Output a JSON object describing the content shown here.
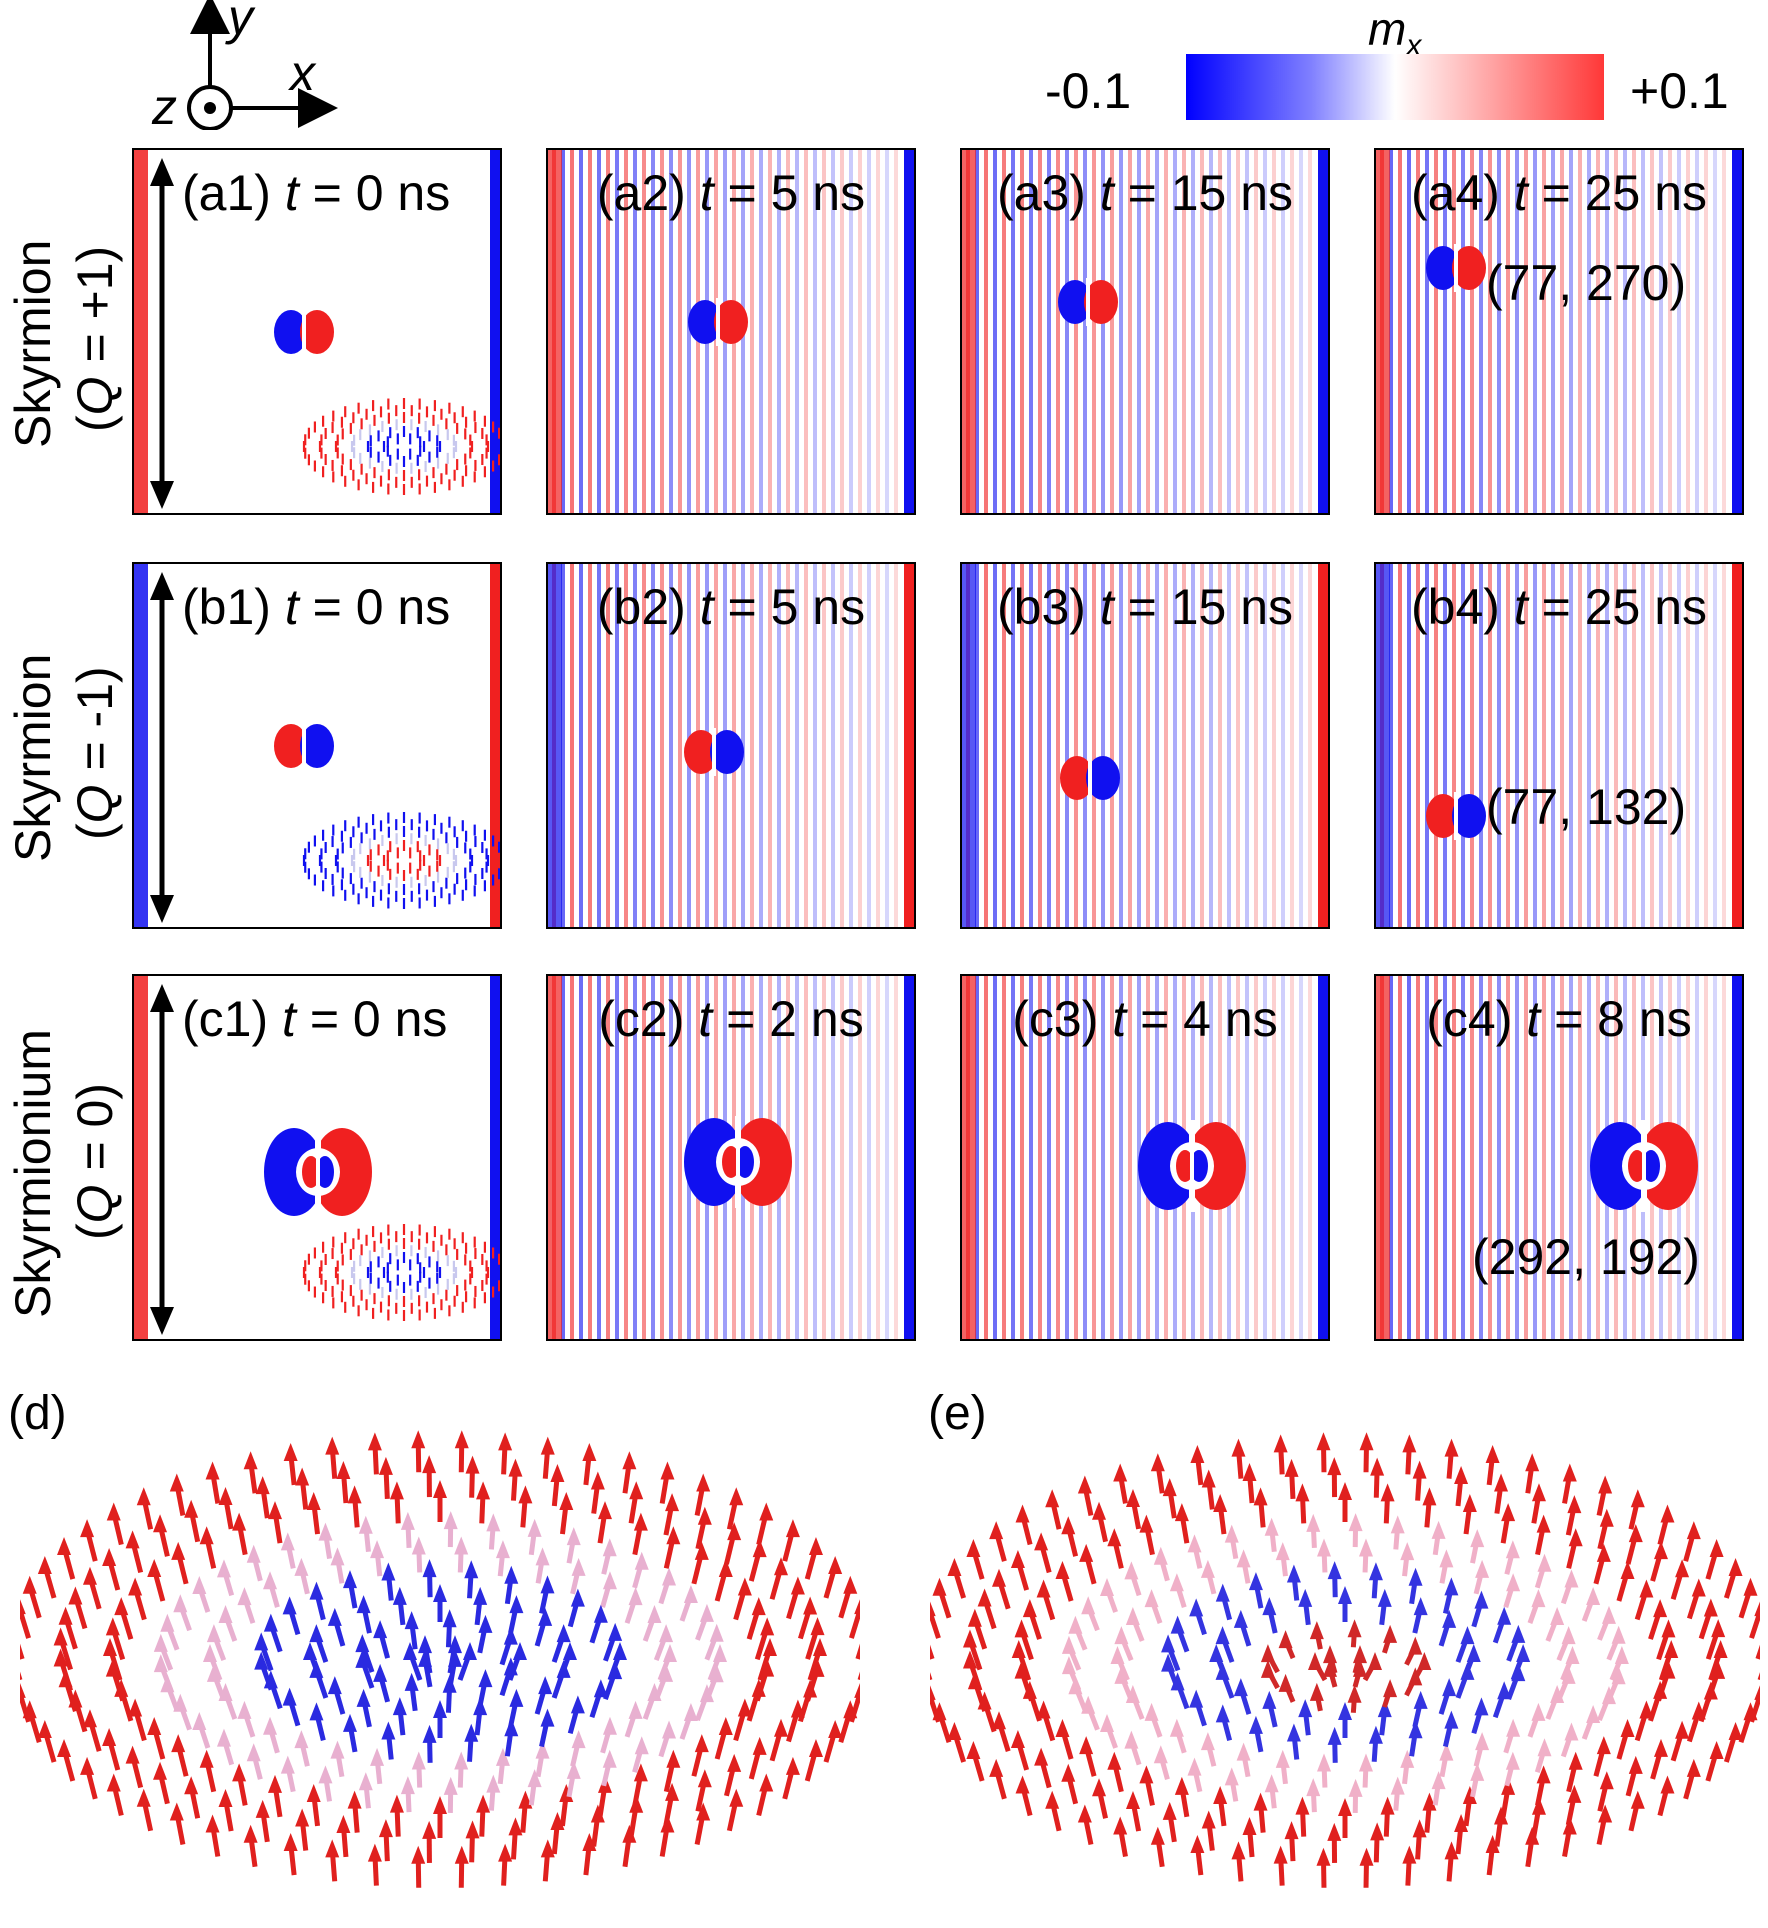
{
  "axes_indicator": {
    "x": "x",
    "y": "y",
    "z": "z"
  },
  "colorbar": {
    "label": "m",
    "label_sub": "x",
    "min_label": "-0.1",
    "max_label": "+0.1",
    "colors": {
      "min": "#0000ff",
      "mid": "#ffffff",
      "max": "#ff2020"
    }
  },
  "rows": [
    {
      "name": "Skyrmion",
      "q_open": "(",
      "q_sym": "Q",
      "q_val": " = +1)"
    },
    {
      "name": "Skyrmion",
      "q_open": "(",
      "q_sym": "Q",
      "q_val": " = -1)"
    },
    {
      "name": "Skyrmionium",
      "q_open": "(",
      "q_sym": "Q",
      "q_val": " = 0)"
    }
  ],
  "panels": [
    {
      "id": "(a1)",
      "t": "t",
      "time": " = 0 ns"
    },
    {
      "id": "(a2)",
      "t": "t",
      "time": " = 5 ns"
    },
    {
      "id": "(a3)",
      "t": "t",
      "time": " = 15 ns"
    },
    {
      "id": "(a4)",
      "t": "t",
      "time": " = 25 ns",
      "coord": "(77, 270)"
    },
    {
      "id": "(b1)",
      "t": "t",
      "time": " = 0 ns"
    },
    {
      "id": "(b2)",
      "t": "t",
      "time": " = 5 ns"
    },
    {
      "id": "(b3)",
      "t": "t",
      "time": " = 15 ns"
    },
    {
      "id": "(b4)",
      "t": "t",
      "time": " = 25 ns",
      "coord": "(77, 132)"
    },
    {
      "id": "(c1)",
      "t": "t",
      "time": " = 0 ns"
    },
    {
      "id": "(c2)",
      "t": "t",
      "time": " = 2 ns"
    },
    {
      "id": "(c3)",
      "t": "t",
      "time": " = 4 ns"
    },
    {
      "id": "(c4)",
      "t": "t",
      "time": " = 8 ns",
      "coord": "(292, 192)"
    }
  ],
  "bottom_panels": {
    "d": "(d)",
    "e": "(e)"
  },
  "arrow_colors": {
    "outer": "#e0201e",
    "core": "#2a2ae0"
  }
}
